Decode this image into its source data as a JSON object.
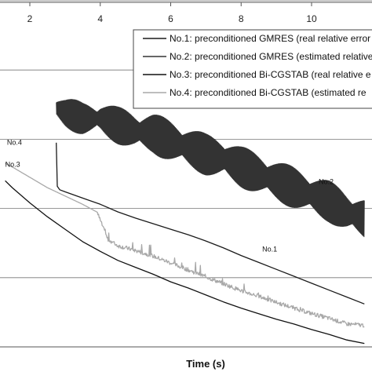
{
  "chart_data": {
    "type": "line",
    "xlabel": "Time (s)",
    "ylabel": "",
    "x_tick_labels": [
      "2",
      "4",
      "6",
      "8",
      "10"
    ],
    "x_ticks": [
      2,
      4,
      6,
      8,
      10
    ],
    "xlim": [
      1.3,
      11.5
    ],
    "ylim": [
      0,
      5
    ],
    "grid_y": true,
    "grid_y_values": [
      1,
      2,
      3,
      4,
      5
    ],
    "legend_placement": "top-right",
    "series": [
      {
        "name": "No.1: preconditioned GMRES (real relative error",
        "color": "#1a1a1a",
        "points": [
          [
            2.75,
            2.95
          ],
          [
            2.78,
            2.32
          ],
          [
            2.85,
            2.27
          ],
          [
            3.0,
            2.24
          ],
          [
            3.5,
            2.15
          ],
          [
            4.0,
            2.06
          ],
          [
            4.5,
            1.95
          ],
          [
            5.0,
            1.86
          ],
          [
            5.5,
            1.78
          ],
          [
            6.0,
            1.7
          ],
          [
            6.5,
            1.62
          ],
          [
            7.0,
            1.53
          ],
          [
            7.5,
            1.43
          ],
          [
            8.0,
            1.32
          ],
          [
            8.5,
            1.22
          ],
          [
            9.0,
            1.12
          ],
          [
            9.5,
            1.02
          ],
          [
            10.0,
            0.92
          ],
          [
            10.5,
            0.82
          ],
          [
            11.0,
            0.72
          ],
          [
            11.5,
            0.62
          ]
        ]
      },
      {
        "name": "No.2: preconditioned GMRES (estimated  relative",
        "color": "#333333",
        "oscillating": true,
        "points": [
          [
            2.75,
            3.45
          ],
          [
            3.0,
            3.38
          ],
          [
            3.5,
            3.3
          ],
          [
            4.0,
            3.3
          ],
          [
            4.5,
            3.2
          ],
          [
            5.0,
            3.12
          ],
          [
            5.5,
            3.08
          ],
          [
            6.0,
            2.98
          ],
          [
            6.5,
            2.88
          ],
          [
            7.0,
            2.78
          ],
          [
            7.5,
            2.72
          ],
          [
            8.0,
            2.6
          ],
          [
            8.5,
            2.5
          ],
          [
            9.0,
            2.4
          ],
          [
            9.5,
            2.3
          ],
          [
            10.0,
            2.2
          ],
          [
            10.5,
            2.1
          ],
          [
            11.0,
            1.95
          ],
          [
            11.5,
            1.85
          ]
        ]
      },
      {
        "name": "No.3: preconditioned Bi-CGSTAB (real  relative  e",
        "color": "#111111",
        "points": [
          [
            1.3,
            2.4
          ],
          [
            1.5,
            2.3
          ],
          [
            2.0,
            2.08
          ],
          [
            2.5,
            1.88
          ],
          [
            3.0,
            1.7
          ],
          [
            3.5,
            1.52
          ],
          [
            4.0,
            1.38
          ],
          [
            4.5,
            1.25
          ],
          [
            5.0,
            1.15
          ],
          [
            5.5,
            1.05
          ],
          [
            6.0,
            0.94
          ],
          [
            6.5,
            0.85
          ],
          [
            7.0,
            0.75
          ],
          [
            7.5,
            0.65
          ],
          [
            8.0,
            0.56
          ],
          [
            8.5,
            0.48
          ],
          [
            9.0,
            0.4
          ],
          [
            9.5,
            0.33
          ],
          [
            10.0,
            0.25
          ],
          [
            10.5,
            0.18
          ],
          [
            11.0,
            0.1
          ],
          [
            11.5,
            0.05
          ]
        ]
      },
      {
        "name": "No.4: preconditioned Bi-CGSTAB (estimated  re",
        "color": "#a8a8a8",
        "noisy": true,
        "points": [
          [
            1.3,
            2.65
          ],
          [
            1.5,
            2.6
          ],
          [
            2.0,
            2.45
          ],
          [
            2.5,
            2.3
          ],
          [
            3.0,
            2.18
          ],
          [
            3.5,
            2.06
          ],
          [
            3.9,
            1.95
          ],
          [
            4.2,
            1.55
          ],
          [
            4.5,
            1.45
          ],
          [
            5.0,
            1.38
          ],
          [
            5.5,
            1.3
          ],
          [
            6.0,
            1.2
          ],
          [
            6.5,
            1.1
          ],
          [
            7.0,
            1.0
          ],
          [
            7.5,
            0.9
          ],
          [
            8.0,
            0.8
          ],
          [
            8.5,
            0.72
          ],
          [
            9.0,
            0.63
          ],
          [
            9.5,
            0.55
          ],
          [
            10.0,
            0.47
          ],
          [
            10.5,
            0.4
          ],
          [
            11.0,
            0.32
          ],
          [
            11.5,
            0.3
          ]
        ]
      }
    ],
    "annotations": [
      {
        "text": "No.1",
        "x": 8.6,
        "y": 1.38
      },
      {
        "text": "No.2",
        "x": 10.2,
        "y": 2.35
      },
      {
        "text": "No.3",
        "x": 1.3,
        "y": 2.6
      },
      {
        "text": "No.4",
        "x": 1.35,
        "y": 2.92
      }
    ]
  }
}
